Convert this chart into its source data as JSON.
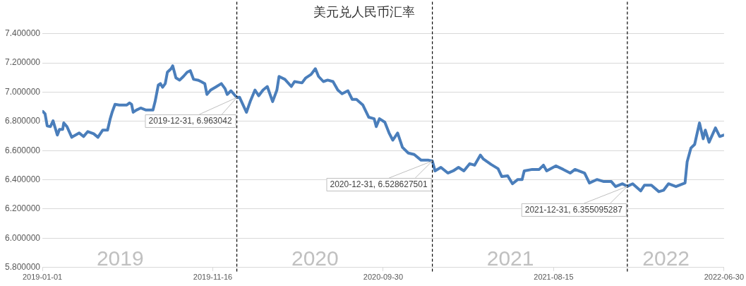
{
  "chart_data": {
    "type": "line",
    "title": "美元兑人民币汇率",
    "x": [
      "2019-01-02",
      "2019-01-06",
      "2019-01-10",
      "2019-01-16",
      "2019-01-21",
      "2019-01-25",
      "2019-01-29",
      "2019-02-02",
      "2019-02-08",
      "2019-02-10",
      "2019-02-16",
      "2019-02-25",
      "2019-03-11",
      "2019-03-19",
      "2019-03-27",
      "2019-04-07",
      "2019-04-15",
      "2019-04-24",
      "2019-05-03",
      "2019-05-08",
      "2019-05-12",
      "2019-05-17",
      "2019-05-25",
      "2019-06-08",
      "2019-06-13",
      "2019-06-17",
      "2019-06-20",
      "2019-06-26",
      "2019-07-04",
      "2019-07-14",
      "2019-07-27",
      "2019-07-31",
      "2019-08-06",
      "2019-08-10",
      "2019-08-14",
      "2019-08-19",
      "2019-08-23",
      "2019-08-30",
      "2019-09-02",
      "2019-09-08",
      "2019-09-15",
      "2019-09-22",
      "2019-09-29",
      "2019-10-05",
      "2019-10-11",
      "2019-10-19",
      "2019-10-25",
      "2019-11-01",
      "2019-11-05",
      "2019-11-12",
      "2019-11-21",
      "2019-12-02",
      "2019-12-09",
      "2019-12-13",
      "2019-12-20",
      "2019-12-26",
      "2019-12-31",
      "2020-01-05",
      "2020-01-18",
      "2020-01-25",
      "2020-02-03",
      "2020-02-10",
      "2020-02-18",
      "2020-02-26",
      "2020-03-07",
      "2020-03-15",
      "2020-03-19",
      "2020-03-30",
      "2020-04-11",
      "2020-04-17",
      "2020-05-01",
      "2020-05-08",
      "2020-05-18",
      "2020-05-26",
      "2020-06-01",
      "2020-06-10",
      "2020-06-18",
      "2020-06-28",
      "2020-07-07",
      "2020-07-15",
      "2020-07-26",
      "2020-08-03",
      "2020-08-11",
      "2020-08-23",
      "2020-09-03",
      "2020-09-13",
      "2020-09-17",
      "2020-09-23",
      "2020-10-03",
      "2020-10-11",
      "2020-10-18",
      "2020-10-27",
      "2020-11-05",
      "2020-11-16",
      "2020-11-27",
      "2020-12-10",
      "2020-12-24",
      "2020-12-31",
      "2021-01-05",
      "2021-01-16",
      "2021-01-29",
      "2021-02-08",
      "2021-02-18",
      "2021-02-28",
      "2021-03-11",
      "2021-03-20",
      "2021-03-31",
      "2021-04-05",
      "2021-04-20",
      "2021-05-03",
      "2021-05-10",
      "2021-05-21",
      "2021-05-30",
      "2021-06-09",
      "2021-06-17",
      "2021-06-21",
      "2021-07-06",
      "2021-07-19",
      "2021-07-27",
      "2021-08-02",
      "2021-08-19",
      "2021-09-02",
      "2021-09-15",
      "2021-09-24",
      "2021-10-12",
      "2021-10-21",
      "2021-11-04",
      "2021-11-17",
      "2021-12-01",
      "2021-12-09",
      "2021-12-22",
      "2021-12-31",
      "2022-01-10",
      "2022-01-25",
      "2022-02-01",
      "2022-02-14",
      "2022-02-28",
      "2022-03-09",
      "2022-03-18",
      "2022-04-01",
      "2022-04-18",
      "2022-04-22",
      "2022-04-29",
      "2022-05-06",
      "2022-05-15",
      "2022-05-22",
      "2022-05-26",
      "2022-06-02",
      "2022-06-14",
      "2022-06-22",
      "2022-06-30"
    ],
    "series": [
      {
        "color": "#4a7ebb",
        "values": [
          6.867,
          6.852,
          6.769,
          6.764,
          6.803,
          6.755,
          6.706,
          6.745,
          6.745,
          6.789,
          6.764,
          6.691,
          6.72,
          6.696,
          6.73,
          6.715,
          6.691,
          6.74,
          6.74,
          6.818,
          6.867,
          6.916,
          6.911,
          6.911,
          6.926,
          6.916,
          6.862,
          6.877,
          6.891,
          6.877,
          6.877,
          6.935,
          7.048,
          7.058,
          7.033,
          7.058,
          7.136,
          7.16,
          7.18,
          7.097,
          7.082,
          7.107,
          7.136,
          7.146,
          7.087,
          7.082,
          7.072,
          7.058,
          6.984,
          7.014,
          7.033,
          7.058,
          7.023,
          6.984,
          7.009,
          6.984,
          6.963042,
          6.965,
          6.862,
          6.935,
          7.014,
          6.975,
          7.014,
          7.038,
          6.935,
          7.014,
          7.107,
          7.087,
          7.038,
          7.072,
          7.063,
          7.097,
          7.121,
          7.16,
          7.107,
          7.072,
          7.082,
          7.072,
          7.014,
          6.989,
          7.009,
          6.95,
          6.95,
          6.911,
          6.828,
          6.818,
          6.764,
          6.818,
          6.794,
          6.72,
          6.671,
          6.72,
          6.622,
          6.583,
          6.573,
          6.534,
          6.534,
          6.528627501,
          6.461,
          6.485,
          6.446,
          6.461,
          6.485,
          6.461,
          6.51,
          6.5,
          6.569,
          6.544,
          6.505,
          6.476,
          6.422,
          6.427,
          6.373,
          6.402,
          6.402,
          6.461,
          6.471,
          6.471,
          6.5,
          6.461,
          6.495,
          6.471,
          6.446,
          6.471,
          6.446,
          6.378,
          6.402,
          6.388,
          6.388,
          6.354,
          6.373,
          6.355095287,
          6.373,
          6.324,
          6.363,
          6.363,
          6.319,
          6.329,
          6.373,
          6.354,
          6.378,
          6.524,
          6.617,
          6.642,
          6.789,
          6.681,
          6.74,
          6.657,
          6.755,
          6.696,
          6.706
        ]
      }
    ],
    "xlim": [
      "2019-01-01",
      "2022-06-30"
    ],
    "xticks": [
      "2019-01-01",
      "2019-11-16",
      "2020-09-30",
      "2021-08-15",
      "2022-06-30"
    ],
    "ylim": [
      5.8,
      7.4
    ],
    "yticks": [
      {
        "value": 5.8,
        "label": "5.800000"
      },
      {
        "value": 6.0,
        "label": "6.000000"
      },
      {
        "value": 6.2,
        "label": "6.200000"
      },
      {
        "value": 6.4,
        "label": "6.400000"
      },
      {
        "value": 6.6,
        "label": "6.600000"
      },
      {
        "value": 6.8,
        "label": "6.800000"
      },
      {
        "value": 7.0,
        "label": "7.000000"
      },
      {
        "value": 7.2,
        "label": "7.200000"
      },
      {
        "value": 7.4,
        "label": "7.400000"
      }
    ],
    "grid": "y",
    "ref_lines": [
      {
        "axis": "x",
        "value": "2019-12-31",
        "color": "#000000",
        "line_style": "dashed"
      },
      {
        "axis": "x",
        "value": "2020-12-31",
        "color": "#000000",
        "line_style": "dashed"
      },
      {
        "axis": "x",
        "value": "2021-12-31",
        "color": "#000000",
        "line_style": "dashed"
      }
    ],
    "annotations": [
      "2019",
      "2020",
      "2021",
      "2022",
      {
        "text": "2019-12-31, 6.963042",
        "x": "2019-12-31",
        "y": 6.963042
      },
      {
        "text": "2020-12-31, 6.528627501",
        "x": "2020-12-31",
        "y": 6.528627501
      },
      {
        "text": "2021-12-31, 6.355095287",
        "x": "2021-12-31",
        "y": 6.355095287
      }
    ]
  }
}
